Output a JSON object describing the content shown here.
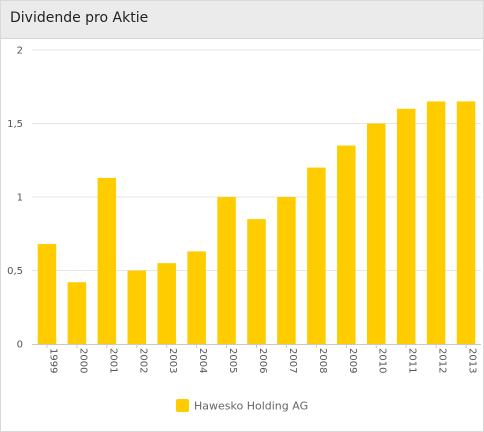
{
  "header": {
    "title": "Dividende pro Aktie"
  },
  "chart_data": {
    "type": "bar",
    "title": "Dividende pro Aktie",
    "xlabel": "",
    "ylabel": "",
    "categories": [
      "1999",
      "2000",
      "2001",
      "2002",
      "2003",
      "2004",
      "2005",
      "2006",
      "2007",
      "2008",
      "2009",
      "2010",
      "2011",
      "2012",
      "2013"
    ],
    "series": [
      {
        "name": "Hawesko Holding AG",
        "color": "#ffcc00",
        "values": [
          0.68,
          0.42,
          1.13,
          0.5,
          0.55,
          0.63,
          1.0,
          0.85,
          1.0,
          1.2,
          1.35,
          1.5,
          1.6,
          1.65,
          1.65
        ]
      }
    ],
    "ylim": [
      0,
      2
    ],
    "yticks": [
      0,
      0.5,
      1,
      1.5,
      2
    ],
    "ytick_labels": [
      "0",
      "0,5",
      "1",
      "1,5",
      "2"
    ],
    "grid": true,
    "legend": "bottom-center"
  }
}
